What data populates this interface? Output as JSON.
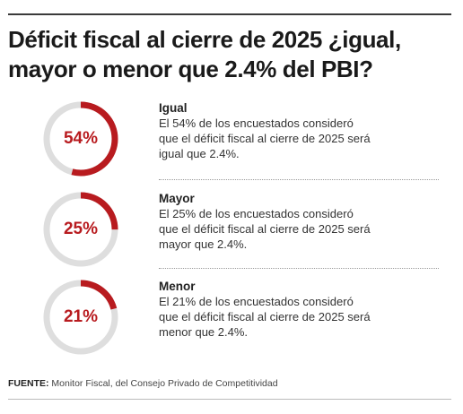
{
  "header": {
    "title_line1": "Déficit fiscal al cierre de 2025 ¿igual,",
    "title_line2": "mayor o menor que 2.4% del PBI?"
  },
  "chart_data": {
    "type": "pie",
    "title": "Déficit fiscal al cierre de 2025 ¿igual, mayor o menor que 2.4% del PBI?",
    "categories": [
      "Igual",
      "Mayor",
      "Menor"
    ],
    "values": [
      54,
      25,
      21
    ],
    "value_labels": [
      "54%",
      "25%",
      "21%"
    ],
    "descriptions": [
      "El 54% de los encuestados consideró que el déficit fiscal al cierre de 2025 será igual que 2.4%.",
      "El 25% de los encuestados consideró que el déficit fiscal al cierre de 2025 será mayor que 2.4%.",
      "El 21% de los encuestados consideró que el déficit fiscal al cierre de 2025 será menor que 2.4%."
    ],
    "colors": {
      "filled": "#b81b1f",
      "track": "#dedede"
    }
  },
  "source": {
    "label": "FUENTE:",
    "text": "Monitor Fiscal, del Consejo Privado de Competitividad"
  }
}
